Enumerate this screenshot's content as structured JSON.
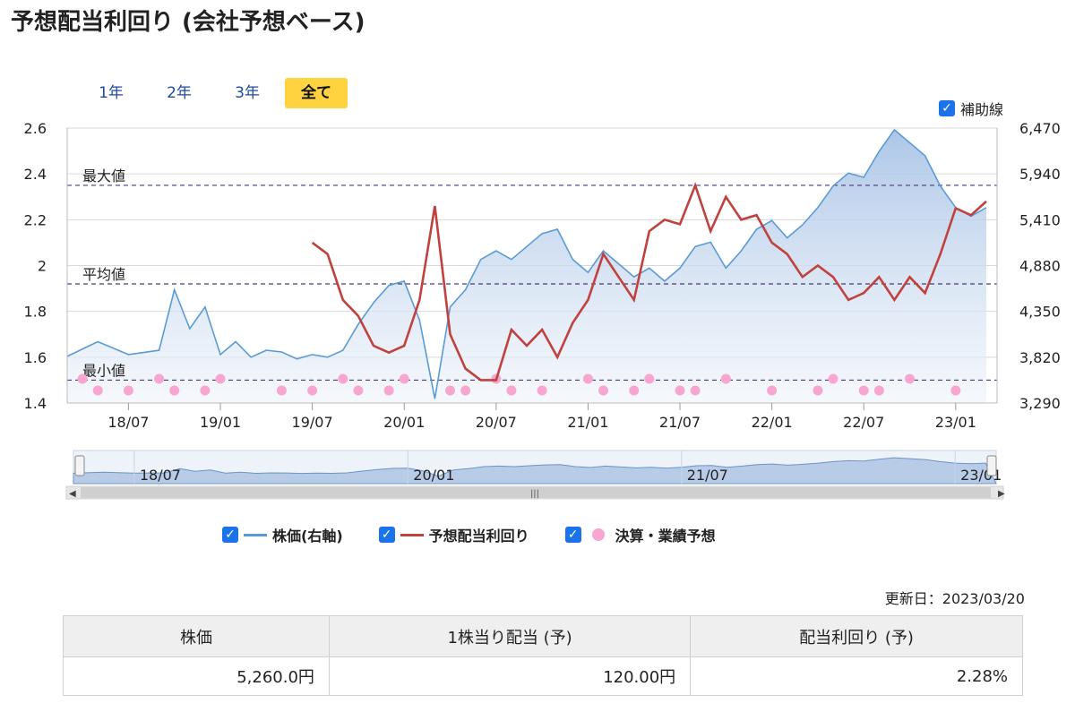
{
  "title": "予想配当利回り (会社予想ベース)",
  "tabs": [
    {
      "label": "1年",
      "active": false
    },
    {
      "label": "2年",
      "active": false
    },
    {
      "label": "3年",
      "active": false
    },
    {
      "label": "全て",
      "active": true
    }
  ],
  "aux_line": {
    "label": "補助線",
    "checked": true
  },
  "chart_data": {
    "type": "line",
    "x_ticks": [
      "18/07",
      "19/01",
      "19/07",
      "20/01",
      "20/07",
      "21/01",
      "21/07",
      "22/01",
      "22/07",
      "23/01"
    ],
    "y_left_ticks": [
      "2.6",
      "2.4",
      "2.2",
      "2",
      "1.8",
      "1.6",
      "1.4"
    ],
    "y_left_range": [
      1.4,
      2.6
    ],
    "y_right_ticks": [
      "6,470",
      "5,940",
      "5,410",
      "4,880",
      "4,350",
      "3,820",
      "3,290"
    ],
    "y_right_range": [
      3290,
      6470
    ],
    "ref_lines": [
      {
        "label": "最大値",
        "value": 2.35
      },
      {
        "label": "平均値",
        "value": 1.92
      },
      {
        "label": "最小値",
        "value": 1.5
      }
    ],
    "series": [
      {
        "name": "株価(右軸)",
        "color": "#5b9bd5",
        "axis": "right",
        "x": [
          "18/03",
          "18/05",
          "18/07",
          "18/09",
          "18/10",
          "18/11",
          "18/12",
          "19/01",
          "19/02",
          "19/03",
          "19/04",
          "19/05",
          "19/06",
          "19/07",
          "19/08",
          "19/09",
          "19/10",
          "19/11",
          "19/12",
          "20/01",
          "20/02",
          "20/03",
          "20/04",
          "20/05",
          "20/06",
          "20/07",
          "20/08",
          "20/09",
          "20/10",
          "20/11",
          "20/12",
          "21/01",
          "21/02",
          "21/03",
          "21/04",
          "21/05",
          "21/06",
          "21/07",
          "21/08",
          "21/09",
          "21/10",
          "21/11",
          "21/12",
          "22/01",
          "22/02",
          "22/03",
          "22/04",
          "22/05",
          "22/06",
          "22/07",
          "22/08",
          "22/09",
          "22/10",
          "22/11",
          "22/12",
          "23/01",
          "23/02",
          "23/03"
        ],
        "values": [
          3830,
          4000,
          3850,
          3900,
          4600,
          4150,
          4400,
          3850,
          4000,
          3820,
          3900,
          3880,
          3800,
          3850,
          3820,
          3900,
          4200,
          4450,
          4650,
          4700,
          4250,
          3340,
          4400,
          4600,
          4950,
          5050,
          4950,
          5100,
          5250,
          5300,
          4950,
          4800,
          5050,
          4900,
          4750,
          4850,
          4700,
          4850,
          5100,
          5150,
          4850,
          5050,
          5300,
          5400,
          5200,
          5350,
          5550,
          5800,
          5950,
          5900,
          6200,
          6450,
          6300,
          6150,
          5800,
          5550,
          5450,
          5550
        ]
      },
      {
        "name": "予想配当利回り",
        "color": "#c0423f",
        "axis": "left",
        "x": [
          "19/07",
          "19/08",
          "19/09",
          "19/10",
          "19/11",
          "19/12",
          "20/01",
          "20/02",
          "20/03",
          "20/04",
          "20/05",
          "20/06",
          "20/07",
          "20/08",
          "20/09",
          "20/10",
          "20/11",
          "20/12",
          "21/01",
          "21/02",
          "21/03",
          "21/04",
          "21/05",
          "21/06",
          "21/07",
          "21/08",
          "21/09",
          "21/10",
          "21/11",
          "21/12",
          "22/01",
          "22/02",
          "22/03",
          "22/04",
          "22/05",
          "22/06",
          "22/07",
          "22/08",
          "22/09",
          "22/10",
          "22/11",
          "22/12",
          "23/01",
          "23/02",
          "23/03"
        ],
        "values": [
          2.1,
          2.05,
          1.85,
          1.78,
          1.65,
          1.62,
          1.65,
          1.85,
          2.26,
          1.7,
          1.55,
          1.5,
          1.5,
          1.72,
          1.65,
          1.72,
          1.6,
          1.75,
          1.85,
          2.05,
          1.95,
          1.85,
          2.15,
          2.2,
          2.18,
          2.35,
          2.15,
          2.3,
          2.2,
          2.22,
          2.1,
          2.05,
          1.95,
          2.0,
          1.95,
          1.85,
          1.88,
          1.95,
          1.85,
          1.95,
          1.88,
          2.05,
          2.25,
          2.22,
          2.28
        ]
      }
    ],
    "events": {
      "name": "決算・業績予想",
      "color": "#f8a6d0",
      "x": [
        "18/04",
        "18/05",
        "18/07",
        "18/09",
        "18/10",
        "18/12",
        "19/01",
        "19/05",
        "19/07",
        "19/09",
        "19/10",
        "19/12",
        "20/01",
        "20/04",
        "20/05",
        "20/07",
        "20/08",
        "20/10",
        "21/01",
        "21/02",
        "21/04",
        "21/05",
        "21/07",
        "21/08",
        "21/10",
        "22/01",
        "22/04",
        "22/05",
        "22/07",
        "22/08",
        "22/10",
        "23/01"
      ]
    },
    "navigator_ticks": [
      "18/07",
      "20/01",
      "21/07",
      "23/01"
    ]
  },
  "legend": [
    {
      "label": "株価(右軸)",
      "color": "#5b9bd5",
      "type": "line",
      "checked": true
    },
    {
      "label": "予想配当利回り",
      "color": "#c0423f",
      "type": "line",
      "checked": true
    },
    {
      "label": "決算・業績予想",
      "color": "#f8a6d0",
      "type": "dot",
      "checked": true
    }
  ],
  "updated": "更新日：2023/03/20",
  "summary": {
    "headers": [
      "株価",
      "1株当り配当 (予)",
      "配当利回り (予)"
    ],
    "values": [
      "5,260.0円",
      "120.00円",
      "2.28%"
    ]
  }
}
